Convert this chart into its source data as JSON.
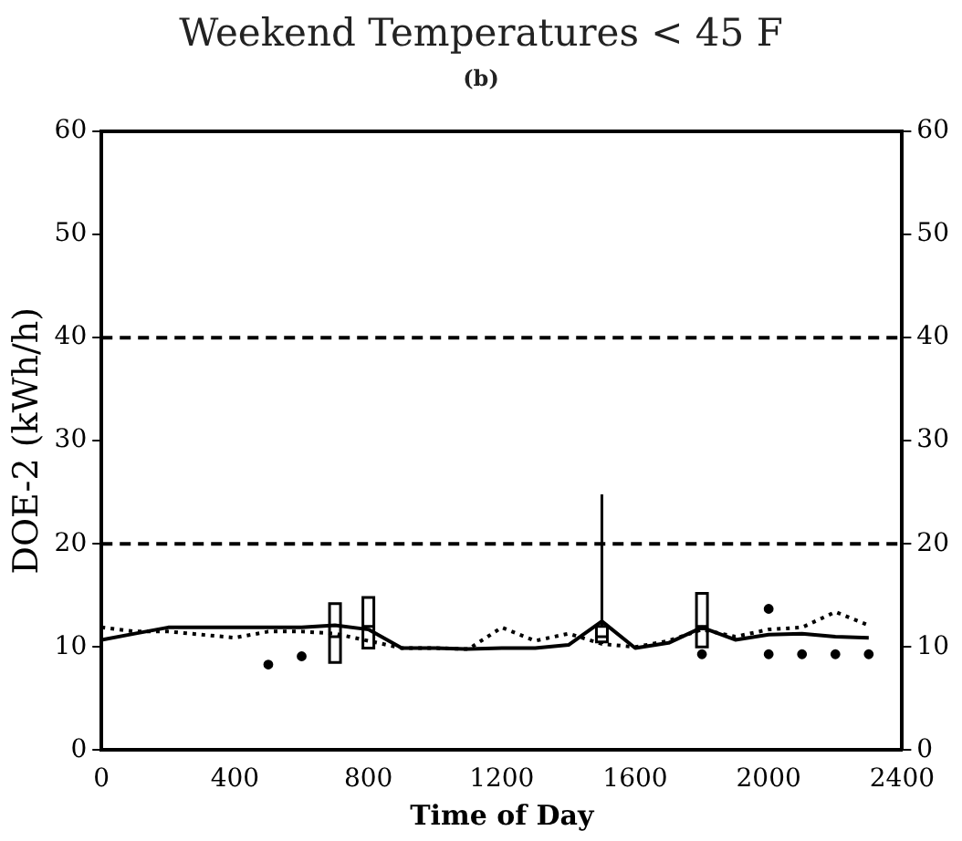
{
  "chart_data": {
    "type": "line",
    "title": "Weekend Temperatures < 45 F",
    "subtitle": "(b)",
    "xlabel": "Time of Day",
    "ylabel": "DOE-2 (kWh/h)",
    "xlim": [
      0,
      2400
    ],
    "xticks": [
      0,
      400,
      800,
      1200,
      1600,
      2000,
      2400
    ],
    "ylim": [
      0,
      60
    ],
    "yticks": [
      0,
      10,
      20,
      30,
      40,
      50,
      60
    ],
    "y2lim": [
      0,
      60
    ],
    "y2ticks": [
      0,
      10,
      20,
      30,
      40,
      50,
      60
    ],
    "grid": false,
    "legend": false,
    "marker": "none",
    "ref_lines": [
      {
        "axis": "y",
        "value": 20,
        "line_style": "dashed",
        "color": "#000000"
      },
      {
        "axis": "y",
        "value": 40,
        "line_style": "dashed",
        "color": "#000000"
      }
    ],
    "series": [
      {
        "type": "line",
        "color": "#000000",
        "line_style": "solid",
        "x": [
          0,
          100,
          200,
          300,
          400,
          500,
          600,
          700,
          800,
          900,
          1000,
          1100,
          1200,
          1300,
          1400,
          1500,
          1600,
          1700,
          1800,
          1900,
          2000,
          2100,
          2200,
          2300
        ],
        "values": [
          10.7,
          11.3,
          11.9,
          11.9,
          11.9,
          11.9,
          11.9,
          12.1,
          11.7,
          9.9,
          9.9,
          9.8,
          9.9,
          9.9,
          10.2,
          12.5,
          9.9,
          10.4,
          11.9,
          10.7,
          11.2,
          11.3,
          11.0,
          10.9
        ]
      },
      {
        "type": "line",
        "color": "#000000",
        "line_style": "dotted",
        "x": [
          0,
          100,
          200,
          300,
          400,
          500,
          600,
          700,
          800,
          900,
          1000,
          1100,
          1200,
          1300,
          1400,
          1500,
          1600,
          1700,
          1800,
          1900,
          2000,
          2100,
          2200,
          2300
        ],
        "values": [
          11.9,
          11.5,
          11.5,
          11.2,
          10.9,
          11.5,
          11.5,
          11.3,
          10.6,
          9.9,
          9.9,
          9.8,
          11.9,
          10.6,
          11.3,
          10.3,
          10.0,
          10.6,
          11.7,
          11.0,
          11.7,
          11.9,
          13.4,
          12.1
        ]
      },
      {
        "type": "box",
        "color": "#000000",
        "x": [
          700,
          800,
          1500,
          1800
        ],
        "boxes": [
          {
            "low": 8.5,
            "q1": 8.5,
            "median": 11,
            "q3": 14.2,
            "high": 14.2
          },
          {
            "low": 9.9,
            "q1": 9.9,
            "median": 12,
            "q3": 14.8,
            "high": 14.8
          },
          {
            "low": 10.3,
            "q1": 10.5,
            "median": 11,
            "q3": 12,
            "high": 24.8
          },
          {
            "low": 10.0,
            "q1": 10.0,
            "median": 12,
            "q3": 15.2,
            "high": 15.2
          }
        ]
      },
      {
        "type": "scatter",
        "color": "#000000",
        "marker": "circle",
        "x": [
          500,
          600,
          1800,
          2000,
          2000,
          2100,
          2200,
          2300
        ],
        "values": [
          8.3,
          9.1,
          9.3,
          13.7,
          9.3,
          9.3,
          9.3,
          9.3
        ]
      }
    ]
  }
}
